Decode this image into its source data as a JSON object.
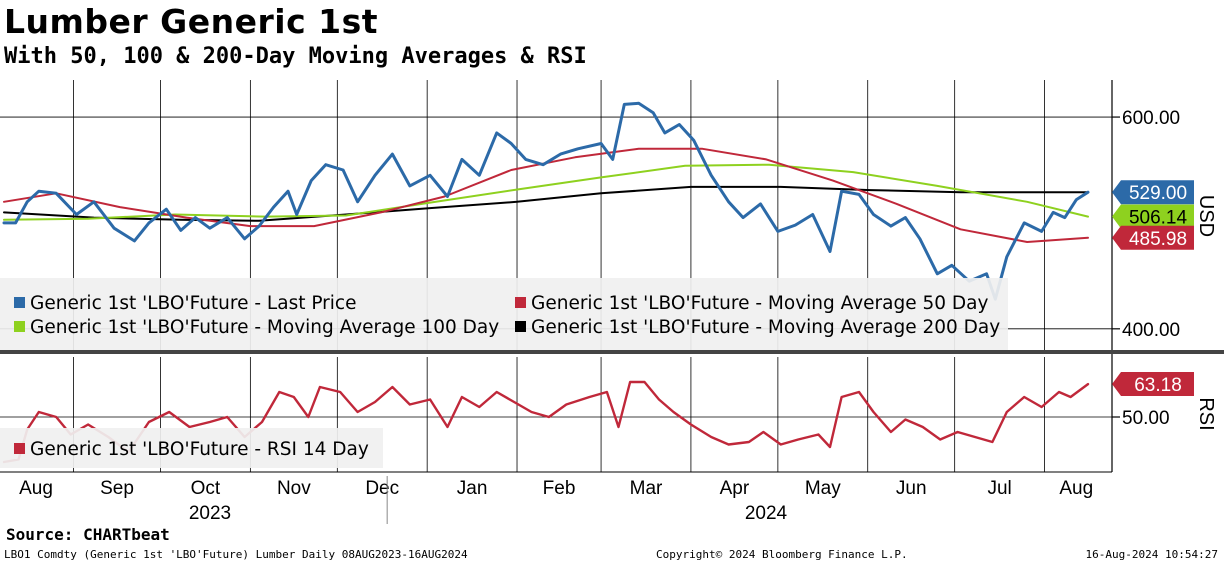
{
  "header": {
    "title": "Lumber Generic 1st",
    "subtitle": "With 50, 100 & 200-Day Moving Averages & RSI"
  },
  "footer": {
    "source": "Source: CHARTbeat",
    "ticker": "LBO1 Comdty (Generic 1st 'LBO'Future) Lumber  Daily 08AUG2023-16AUG2024",
    "copyright": "Copyright© 2024 Bloomberg Finance L.P.",
    "timestamp": "16-Aug-2024 10:54:27"
  },
  "colors": {
    "last_price": "#2c6aa8",
    "ma50": "#c0283a",
    "ma100": "#8ed11f",
    "ma200": "#000000",
    "rsi": "#c0283a"
  },
  "chart_data": [
    {
      "type": "line",
      "panel": "price",
      "ylabel": "USD",
      "ylim": [
        380,
        635
      ],
      "yticks": [
        400,
        600
      ],
      "ytick_labels": [
        "400.00",
        "600.00"
      ],
      "grid": true,
      "legend_position": "bottom-left",
      "x_months": [
        "Aug",
        "Sep",
        "Oct",
        "Nov",
        "Dec",
        "Jan",
        "Feb",
        "Mar",
        "Apr",
        "May",
        "Jun",
        "Jul",
        "Aug"
      ],
      "x_years": [
        "2023",
        "2024"
      ],
      "x_range": [
        "2023-08-08",
        "2024-08-16"
      ],
      "series": [
        {
          "name": "Generic 1st 'LBO'Future - Last Price",
          "color": "#2c6aa8",
          "last_label": "529.00",
          "points": [
            [
              "2023-08-08",
              500
            ],
            [
              "2023-08-12",
              500
            ],
            [
              "2023-08-16",
              520
            ],
            [
              "2023-08-20",
              530
            ],
            [
              "2023-08-26",
              528
            ],
            [
              "2023-09-02",
              508
            ],
            [
              "2023-09-08",
              520
            ],
            [
              "2023-09-15",
              495
            ],
            [
              "2023-09-22",
              483
            ],
            [
              "2023-09-27",
              500
            ],
            [
              "2023-10-03",
              513
            ],
            [
              "2023-10-08",
              493
            ],
            [
              "2023-10-13",
              505
            ],
            [
              "2023-10-18",
              495
            ],
            [
              "2023-10-24",
              505
            ],
            [
              "2023-10-30",
              485
            ],
            [
              "2023-11-04",
              497
            ],
            [
              "2023-11-09",
              515
            ],
            [
              "2023-11-14",
              530
            ],
            [
              "2023-11-17",
              508
            ],
            [
              "2023-11-22",
              540
            ],
            [
              "2023-11-27",
              555
            ],
            [
              "2023-12-03",
              550
            ],
            [
              "2023-12-08",
              520
            ],
            [
              "2023-12-14",
              545
            ],
            [
              "2023-12-20",
              565
            ],
            [
              "2023-12-26",
              535
            ],
            [
              "2024-01-02",
              545
            ],
            [
              "2024-01-08",
              525
            ],
            [
              "2024-01-13",
              560
            ],
            [
              "2024-01-19",
              545
            ],
            [
              "2024-01-25",
              585
            ],
            [
              "2024-01-30",
              575
            ],
            [
              "2024-02-04",
              560
            ],
            [
              "2024-02-10",
              555
            ],
            [
              "2024-02-16",
              565
            ],
            [
              "2024-02-22",
              570
            ],
            [
              "2024-03-01",
              575
            ],
            [
              "2024-03-05",
              560
            ],
            [
              "2024-03-09",
              612
            ],
            [
              "2024-03-14",
              613
            ],
            [
              "2024-03-19",
              604
            ],
            [
              "2024-03-23",
              585
            ],
            [
              "2024-03-28",
              593
            ],
            [
              "2024-04-02",
              578
            ],
            [
              "2024-04-08",
              545
            ],
            [
              "2024-04-14",
              520
            ],
            [
              "2024-04-19",
              505
            ],
            [
              "2024-04-25",
              518
            ],
            [
              "2024-05-01",
              492
            ],
            [
              "2024-05-07",
              498
            ],
            [
              "2024-05-13",
              508
            ],
            [
              "2024-05-19",
              473
            ],
            [
              "2024-05-23",
              530
            ],
            [
              "2024-05-29",
              527
            ],
            [
              "2024-06-03",
              508
            ],
            [
              "2024-06-09",
              497
            ],
            [
              "2024-06-14",
              505
            ],
            [
              "2024-06-19",
              485
            ],
            [
              "2024-06-25",
              452
            ],
            [
              "2024-06-30",
              460
            ],
            [
              "2024-07-06",
              445
            ],
            [
              "2024-07-12",
              452
            ],
            [
              "2024-07-15",
              428
            ],
            [
              "2024-07-19",
              468
            ],
            [
              "2024-07-25",
              500
            ],
            [
              "2024-07-31",
              492
            ],
            [
              "2024-08-04",
              510
            ],
            [
              "2024-08-08",
              505
            ],
            [
              "2024-08-12",
              522
            ],
            [
              "2024-08-16",
              529
            ]
          ]
        },
        {
          "name": "Generic 1st 'LBO'Future - Moving Average 50 Day",
          "color": "#c0283a",
          "last_label": "485.98",
          "points": [
            [
              "2023-08-08",
              520
            ],
            [
              "2023-08-26",
              528
            ],
            [
              "2023-09-17",
              515
            ],
            [
              "2023-10-10",
              505
            ],
            [
              "2023-11-01",
              497
            ],
            [
              "2023-11-23",
              497
            ],
            [
              "2023-12-16",
              510
            ],
            [
              "2024-01-07",
              525
            ],
            [
              "2024-01-30",
              550
            ],
            [
              "2024-02-21",
              562
            ],
            [
              "2024-03-14",
              570
            ],
            [
              "2024-04-05",
              570
            ],
            [
              "2024-04-27",
              560
            ],
            [
              "2024-05-20",
              540
            ],
            [
              "2024-06-11",
              518
            ],
            [
              "2024-07-03",
              494
            ],
            [
              "2024-07-26",
              482
            ],
            [
              "2024-08-16",
              486
            ]
          ]
        },
        {
          "name": "Generic 1st 'LBO'Future - Moving Average 100 Day",
          "color": "#8ed11f",
          "last_label": "506.14",
          "points": [
            [
              "2023-08-08",
              503
            ],
            [
              "2023-09-06",
              504
            ],
            [
              "2023-10-06",
              508
            ],
            [
              "2023-11-06",
              506
            ],
            [
              "2023-12-04",
              507
            ],
            [
              "2024-01-04",
              520
            ],
            [
              "2024-02-02",
              532
            ],
            [
              "2024-03-01",
              543
            ],
            [
              "2024-03-30",
              554
            ],
            [
              "2024-04-28",
              555
            ],
            [
              "2024-05-27",
              548
            ],
            [
              "2024-06-25",
              535
            ],
            [
              "2024-07-26",
              520
            ],
            [
              "2024-08-16",
              506
            ]
          ]
        },
        {
          "name": "Generic 1st 'LBO'Future - Moving Average 200 Day",
          "color": "#000000",
          "last_label": "",
          "points": [
            [
              "2023-08-08",
              510
            ],
            [
              "2023-09-08",
              505
            ],
            [
              "2023-10-08",
              503
            ],
            [
              "2023-11-04",
              502
            ],
            [
              "2023-12-04",
              508
            ],
            [
              "2024-01-02",
              514
            ],
            [
              "2024-02-01",
              520
            ],
            [
              "2024-03-01",
              528
            ],
            [
              "2024-04-01",
              534
            ],
            [
              "2024-05-02",
              534
            ],
            [
              "2024-06-02",
              531
            ],
            [
              "2024-07-03",
              529
            ],
            [
              "2024-08-16",
              529
            ]
          ]
        }
      ]
    },
    {
      "type": "line",
      "panel": "rsi",
      "ylabel": "RSI",
      "ylim": [
        28,
        74
      ],
      "yticks": [
        50
      ],
      "ytick_labels": [
        "50.00"
      ],
      "grid": true,
      "legend_position": "bottom-left",
      "series": [
        {
          "name": "Generic 1st 'LBO'Future - RSI 14 Day",
          "color": "#c0283a",
          "last_label": "63.18",
          "points": [
            [
              "2023-08-08",
              32
            ],
            [
              "2023-08-13",
              33
            ],
            [
              "2023-08-16",
              45
            ],
            [
              "2023-08-20",
              52
            ],
            [
              "2023-08-26",
              50
            ],
            [
              "2023-08-31",
              43
            ],
            [
              "2023-09-06",
              47
            ],
            [
              "2023-09-13",
              42
            ],
            [
              "2023-09-20",
              36
            ],
            [
              "2023-09-27",
              48
            ],
            [
              "2023-10-04",
              52
            ],
            [
              "2023-10-11",
              46
            ],
            [
              "2023-10-18",
              48
            ],
            [
              "2023-10-24",
              50
            ],
            [
              "2023-10-30",
              42
            ],
            [
              "2023-11-05",
              48
            ],
            [
              "2023-11-11",
              60
            ],
            [
              "2023-11-16",
              58
            ],
            [
              "2023-11-21",
              50
            ],
            [
              "2023-11-25",
              62
            ],
            [
              "2023-12-02",
              60
            ],
            [
              "2023-12-08",
              52
            ],
            [
              "2023-12-14",
              56
            ],
            [
              "2023-12-20",
              62
            ],
            [
              "2023-12-26",
              55
            ],
            [
              "2024-01-02",
              57
            ],
            [
              "2024-01-08",
              46
            ],
            [
              "2024-01-13",
              58
            ],
            [
              "2024-01-19",
              54
            ],
            [
              "2024-01-25",
              60
            ],
            [
              "2024-01-31",
              56
            ],
            [
              "2024-02-06",
              52
            ],
            [
              "2024-02-12",
              50
            ],
            [
              "2024-02-18",
              55
            ],
            [
              "2024-02-26",
              58
            ],
            [
              "2024-03-03",
              60
            ],
            [
              "2024-03-07",
              46
            ],
            [
              "2024-03-11",
              64
            ],
            [
              "2024-03-16",
              64
            ],
            [
              "2024-03-21",
              57
            ],
            [
              "2024-03-26",
              52
            ],
            [
              "2024-04-01",
              47
            ],
            [
              "2024-04-08",
              42
            ],
            [
              "2024-04-14",
              39
            ],
            [
              "2024-04-21",
              40
            ],
            [
              "2024-04-26",
              44
            ],
            [
              "2024-05-02",
              39
            ],
            [
              "2024-05-08",
              41
            ],
            [
              "2024-05-15",
              43
            ],
            [
              "2024-05-19",
              38
            ],
            [
              "2024-05-23",
              58
            ],
            [
              "2024-05-29",
              60
            ],
            [
              "2024-06-03",
              52
            ],
            [
              "2024-06-09",
              44
            ],
            [
              "2024-06-14",
              49
            ],
            [
              "2024-06-20",
              46
            ],
            [
              "2024-06-26",
              41
            ],
            [
              "2024-07-02",
              44
            ],
            [
              "2024-07-08",
              42
            ],
            [
              "2024-07-14",
              40
            ],
            [
              "2024-07-19",
              52
            ],
            [
              "2024-07-25",
              58
            ],
            [
              "2024-07-31",
              54
            ],
            [
              "2024-08-06",
              60
            ],
            [
              "2024-08-10",
              58
            ],
            [
              "2024-08-16",
              63.18
            ]
          ]
        }
      ]
    }
  ]
}
